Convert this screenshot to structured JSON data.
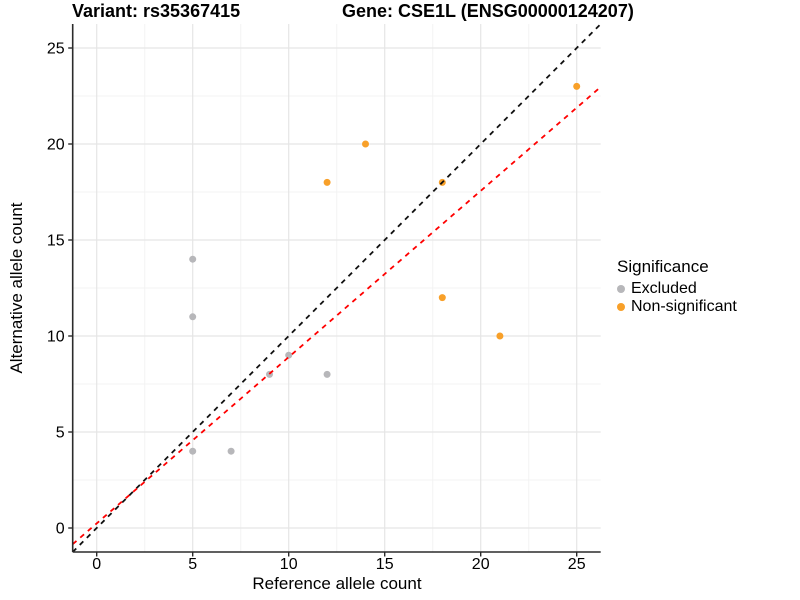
{
  "titles": {
    "variant": "Variant: rs35367415",
    "gene": "Gene: CSE1L (ENSG00000124207)"
  },
  "legend": {
    "title": "Significance",
    "items": [
      {
        "label": "Excluded",
        "color": "#b7b7ba"
      },
      {
        "label": "Non-significant",
        "color": "#f8a029"
      }
    ]
  },
  "chart_data": {
    "type": "scatter",
    "title_left": "Variant: rs35367415",
    "title_right": "Gene: CSE1L (ENSG00000124207)",
    "xlabel": "Reference allele count",
    "ylabel": "Alternative allele count",
    "xlim": [
      -1.25,
      26.25
    ],
    "ylim": [
      -1.25,
      26.25
    ],
    "x_ticks": [
      0,
      5,
      10,
      15,
      20,
      25
    ],
    "y_ticks": [
      0,
      5,
      10,
      15,
      20,
      25
    ],
    "minor_ticks": [
      2.5,
      7.5,
      12.5,
      17.5,
      22.5
    ],
    "grid": true,
    "legend_position": "right",
    "series": [
      {
        "name": "Excluded",
        "color": "#b7b7ba",
        "points": [
          [
            5,
            14
          ],
          [
            5,
            11
          ],
          [
            9,
            8
          ],
          [
            10,
            9
          ],
          [
            12,
            8
          ],
          [
            5,
            4
          ],
          [
            7,
            4
          ]
        ]
      },
      {
        "name": "Non-significant",
        "color": "#f8a029",
        "points": [
          [
            12,
            18
          ],
          [
            14,
            20
          ],
          [
            18,
            18
          ],
          [
            25,
            23
          ],
          [
            18,
            12
          ],
          [
            21,
            10
          ]
        ]
      }
    ],
    "lines": [
      {
        "name": "identity-line",
        "color": "#111111",
        "style": "dashed",
        "slope": 1,
        "intercept": 0
      },
      {
        "name": "fit-line",
        "color": "#ff0000",
        "style": "dashed",
        "slope": 0.866,
        "intercept": 0.24
      }
    ],
    "colors": {
      "grid_major": "#e5e5e5",
      "grid_minor": "#f3f3f3",
      "axis": "#2b2b2b",
      "text": "#000000"
    }
  }
}
